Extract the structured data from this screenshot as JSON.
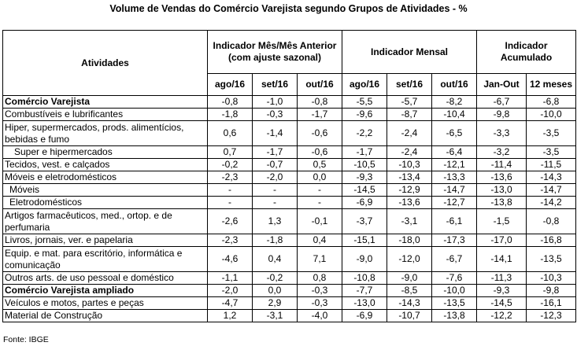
{
  "title": "Volume de Vendas do Comércio Varejista segundo Grupos de Atividades - %",
  "header": {
    "atividades": "Atividades",
    "groups": [
      "Indicador Mês/Mês Anterior (com ajuste sazonal)",
      "Indicador Mensal",
      "Indicador Acumulado"
    ],
    "columns": [
      "ago/16",
      "set/16",
      "out/16",
      "ago/16",
      "set/16",
      "out/16",
      "Jan-Out",
      "12 meses"
    ]
  },
  "rows": [
    {
      "label": "Comércio Varejista",
      "style": "bold",
      "lines": 1,
      "values": [
        "-0,8",
        "-1,0",
        "-0,8",
        "-5,5",
        "-5,7",
        "-8,2",
        "-6,7",
        "-6,8"
      ]
    },
    {
      "label": "Combustíveis e lubrificantes",
      "style": "",
      "lines": 1,
      "values": [
        "-1,8",
        "-0,3",
        "-1,7",
        "-9,6",
        "-8,7",
        "-10,4",
        "-9,8",
        "-10,0"
      ]
    },
    {
      "label": "Hiper, supermercados, prods. alimentícios, bebidas e fumo",
      "style": "",
      "lines": 2,
      "values": [
        "0,6",
        "-1,4",
        "-0,6",
        "-2,2",
        "-2,4",
        "-6,5",
        "-3,3",
        "-3,5"
      ]
    },
    {
      "label": "Super e hipermercados",
      "style": "ind1",
      "lines": 1,
      "values": [
        "0,7",
        "-1,7",
        "-0,6",
        "-1,7",
        "-2,4",
        "-6,4",
        "-3,2",
        "-3,5"
      ]
    },
    {
      "label": "Tecidos, vest. e calçados",
      "style": "",
      "lines": 1,
      "values": [
        "-0,2",
        "-0,7",
        "0,5",
        "-10,5",
        "-10,3",
        "-12,1",
        "-11,4",
        "-11,5"
      ]
    },
    {
      "label": "Móveis e eletrodomésticos",
      "style": "",
      "lines": 1,
      "values": [
        "-2,3",
        "-2,0",
        "0,0",
        "-9,3",
        "-13,4",
        "-13,3",
        "-13,6",
        "-14,3"
      ]
    },
    {
      "label": "Móveis",
      "style": "ind2",
      "lines": 1,
      "values": [
        "-",
        "-",
        "-",
        "-14,5",
        "-12,9",
        "-14,7",
        "-13,0",
        "-14,7"
      ]
    },
    {
      "label": "Eletrodomésticos",
      "style": "ind2",
      "lines": 1,
      "values": [
        "-",
        "-",
        "-",
        "-6,9",
        "-13,6",
        "-12,7",
        "-13,8",
        "-14,2"
      ]
    },
    {
      "label": "Artigos farmacêuticos, med., ortop. e de perfumaria",
      "style": "",
      "lines": 2,
      "values": [
        "-2,6",
        "1,3",
        "-0,1",
        "-3,7",
        "-3,1",
        "-6,1",
        "-1,5",
        "-0,8"
      ]
    },
    {
      "label": "Livros, jornais, ver. e papelaria",
      "style": "",
      "lines": 1,
      "values": [
        "-2,3",
        "-1,8",
        "0,4",
        "-15,1",
        "-18,0",
        "-17,3",
        "-17,0",
        "-16,8"
      ]
    },
    {
      "label": "Equip. e mat. para escritório, informática e comunicação",
      "style": "",
      "lines": 2,
      "values": [
        "-4,6",
        "0,4",
        "7,1",
        "-9,0",
        "-12,0",
        "-6,7",
        "-14,1",
        "-13,5"
      ]
    },
    {
      "label": "Outros arts. de uso pessoal e doméstico",
      "style": "",
      "lines": 1,
      "values": [
        "-1,1",
        "-0,2",
        "0,8",
        "-10,8",
        "-9,0",
        "-7,6",
        "-11,3",
        "-10,3"
      ]
    },
    {
      "label": "Comércio Varejista ampliado",
      "style": "bold",
      "lines": 1,
      "values": [
        "-2,0",
        "0,0",
        "-0,3",
        "-7,7",
        "-8,5",
        "-10,0",
        "-9,3",
        "-9,8"
      ]
    },
    {
      "label": "Veículos e motos, partes e peças",
      "style": "",
      "lines": 1,
      "values": [
        "-4,7",
        "2,9",
        "-0,3",
        "-13,0",
        "-14,3",
        "-13,5",
        "-14,5",
        "-16,1"
      ]
    },
    {
      "label": "Material de Construção",
      "style": "",
      "lines": 1,
      "values": [
        "1,2",
        "-3,1",
        "-4,0",
        "-6,9",
        "-10,7",
        "-13,8",
        "-12,2",
        "-12,3"
      ]
    }
  ],
  "source": "Fonte: IBGE"
}
